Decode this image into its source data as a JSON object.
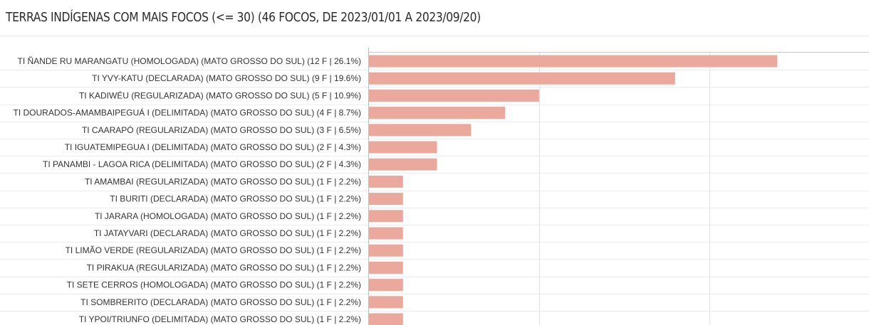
{
  "panel": {
    "title": "TERRAS INDÍGENAS COM MAIS FOCOS (<= 30) (46 FOCOS, DE 2023/01/01 A 2023/09/20)"
  },
  "chart_data": {
    "type": "bar",
    "orientation": "horizontal",
    "title": "TERRAS INDÍGENAS COM MAIS FOCOS (<= 30) (46 FOCOS, DE 2023/01/01 A 2023/09/20)",
    "categories": [
      "TI ÑANDE RU MARANGATU (HOMOLOGADA) (MATO GROSSO DO SUL) (12 F | 26.1%)",
      "TI YVY-KATU (DECLARADA) (MATO GROSSO DO SUL) (9 F | 19.6%)",
      "TI KADIWÉU (REGULARIZADA) (MATO GROSSO DO SUL) (5 F | 10.9%)",
      "TI DOURADOS-AMAMBAIPEGUÁ I (DELIMITADA) (MATO GROSSO DO SUL) (4 F | 8.7%)",
      "TI CAARAPÓ (REGULARIZADA) (MATO GROSSO DO SUL) (3 F | 6.5%)",
      "TI IGUATEMIPEGUA I (DELIMITADA) (MATO GROSSO DO SUL) (2 F | 4.3%)",
      "TI PANAMBI - LAGOA RICA (DELIMITADA) (MATO GROSSO DO SUL) (2 F | 4.3%)",
      "TI AMAMBAI (REGULARIZADA) (MATO GROSSO DO SUL) (1 F | 2.2%)",
      "TI BURITI (DECLARADA) (MATO GROSSO DO SUL) (1 F | 2.2%)",
      "TI JARARA (HOMOLOGADA) (MATO GROSSO DO SUL) (1 F | 2.2%)",
      "TI JATAYVARI (DECLARADA) (MATO GROSSO DO SUL) (1 F | 2.2%)",
      "TI LIMÃO VERDE (REGULARIZADA) (MATO GROSSO DO SUL) (1 F | 2.2%)",
      "TI PIRAKUA (REGULARIZADA) (MATO GROSSO DO SUL) (1 F | 2.2%)",
      "TI SETE CERROS (HOMOLOGADA) (MATO GROSSO DO SUL) (1 F | 2.2%)",
      "TI SOMBRERITO (DECLARADA) (MATO GROSSO DO SUL) (1 F | 2.2%)",
      "TI YPOI/TRIUNFO (DELIMITADA) (MATO GROSSO DO SUL) (1 F | 2.2%)"
    ],
    "values": [
      12,
      9,
      5,
      4,
      3,
      2,
      2,
      1,
      1,
      1,
      1,
      1,
      1,
      1,
      1,
      1
    ],
    "xlim": [
      0,
      15
    ],
    "grid": true,
    "legend": "none",
    "bar_color": "#eba89c"
  }
}
